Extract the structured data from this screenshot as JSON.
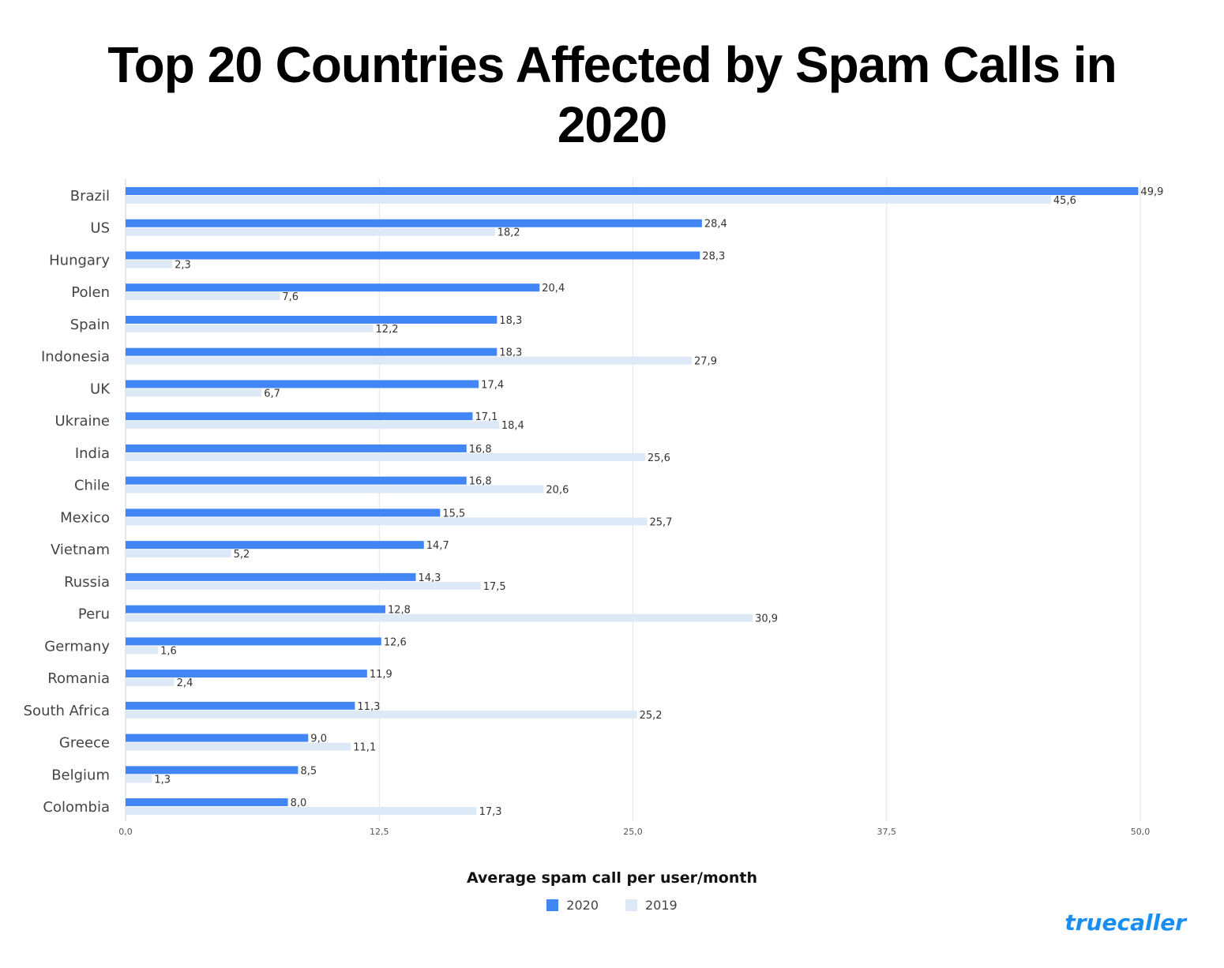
{
  "chart_data": {
    "type": "bar",
    "orientation": "horizontal",
    "title": "Top 20 Countries Affected by Spam Calls in 2020",
    "xlabel": "Average spam call per user/month",
    "ylabel": "",
    "xlim": [
      0,
      50
    ],
    "xticks": [
      "0,0",
      "12,5",
      "25,0",
      "37,5",
      "50,0"
    ],
    "grid": true,
    "legend_position": "bottom",
    "categories": [
      "Brazil",
      "US",
      "Hungary",
      "Polen",
      "Spain",
      "Indonesia",
      "UK",
      "Ukraine",
      "India",
      "Chile",
      "Mexico",
      "Vietnam",
      "Russia",
      "Peru",
      "Germany",
      "Romania",
      "South Africa",
      "Greece",
      "Belgium",
      "Colombia"
    ],
    "series": [
      {
        "name": "2020",
        "color": "#4285f4",
        "values": [
          49.9,
          28.4,
          28.3,
          20.4,
          18.3,
          18.3,
          17.4,
          17.1,
          16.8,
          16.8,
          15.5,
          14.7,
          14.3,
          12.8,
          12.6,
          11.9,
          11.3,
          9.0,
          8.5,
          8.0
        ]
      },
      {
        "name": "2019",
        "color": "#dde9f7",
        "values": [
          45.6,
          18.2,
          2.3,
          7.6,
          12.2,
          27.9,
          6.7,
          18.4,
          25.6,
          20.6,
          25.7,
          5.2,
          17.5,
          30.9,
          1.6,
          2.4,
          25.2,
          11.1,
          1.3,
          17.3
        ]
      }
    ]
  },
  "brand": {
    "logo": "truecaller",
    "color": "#1a8df0"
  }
}
